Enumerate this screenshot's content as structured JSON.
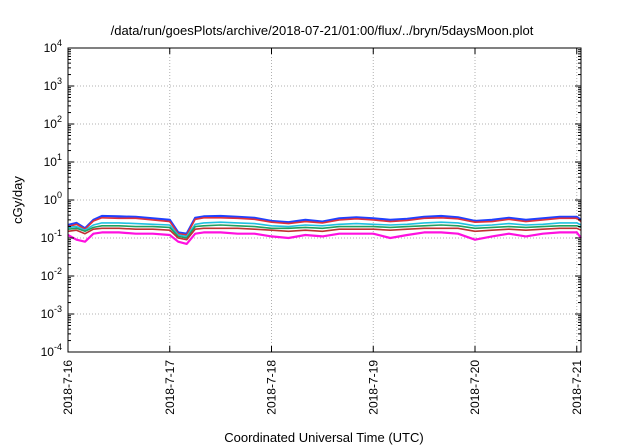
{
  "chart_data": {
    "type": "line",
    "title": "/data/run/goesPlots/archive/2018-07-21/01:00/flux/../bryn/5daysMoon.plot",
    "xlabel": "Coordinated Universal Time (UTC)",
    "ylabel": "cGy/day",
    "y_scale": "log",
    "ylim": [
      0.0001,
      10000
    ],
    "xlim": [
      "2018-07-16",
      "2018-07-21 01:00"
    ],
    "x_ticks": [
      "2018-7-16",
      "2018-7-17",
      "2018-7-18",
      "2018-7-19",
      "2018-7-20",
      "2018-7-21"
    ],
    "y_ticks": [
      {
        "base": "10",
        "exp": "-4"
      },
      {
        "base": "10",
        "exp": "-3"
      },
      {
        "base": "10",
        "exp": "-2"
      },
      {
        "base": "10",
        "exp": "-1"
      },
      {
        "base": "10",
        "exp": "0"
      },
      {
        "base": "10",
        "exp": "1"
      },
      {
        "base": "10",
        "exp": "2"
      },
      {
        "base": "10",
        "exp": "3"
      },
      {
        "base": "10",
        "exp": "4"
      }
    ],
    "grid": true,
    "x": [
      "2018-07-16 00:00",
      "2018-07-16 02:00",
      "2018-07-16 04:00",
      "2018-07-16 06:00",
      "2018-07-16 08:00",
      "2018-07-16 12:00",
      "2018-07-16 16:00",
      "2018-07-16 20:00",
      "2018-07-17 00:00",
      "2018-07-17 02:00",
      "2018-07-17 04:00",
      "2018-07-17 06:00",
      "2018-07-17 08:00",
      "2018-07-17 12:00",
      "2018-07-17 16:00",
      "2018-07-17 20:00",
      "2018-07-18 00:00",
      "2018-07-18 04:00",
      "2018-07-18 08:00",
      "2018-07-18 12:00",
      "2018-07-18 16:00",
      "2018-07-18 20:00",
      "2018-07-19 00:00",
      "2018-07-19 04:00",
      "2018-07-19 08:00",
      "2018-07-19 12:00",
      "2018-07-19 16:00",
      "2018-07-19 20:00",
      "2018-07-20 00:00",
      "2018-07-20 04:00",
      "2018-07-20 08:00",
      "2018-07-20 12:00",
      "2018-07-20 16:00",
      "2018-07-20 20:00",
      "2018-07-21 00:00",
      "2018-07-21 01:00"
    ],
    "series": [
      {
        "color": "#2040ff",
        "values": [
          0.22,
          0.25,
          0.18,
          0.3,
          0.38,
          0.37,
          0.36,
          0.33,
          0.3,
          0.14,
          0.13,
          0.34,
          0.37,
          0.38,
          0.36,
          0.34,
          0.28,
          0.26,
          0.3,
          0.27,
          0.33,
          0.35,
          0.33,
          0.3,
          0.32,
          0.36,
          0.38,
          0.35,
          0.28,
          0.3,
          0.34,
          0.3,
          0.33,
          0.36,
          0.36,
          0.3
        ]
      },
      {
        "color": "#e0303a",
        "values": [
          0.2,
          0.23,
          0.17,
          0.28,
          0.34,
          0.33,
          0.33,
          0.3,
          0.27,
          0.13,
          0.12,
          0.31,
          0.34,
          0.34,
          0.33,
          0.31,
          0.26,
          0.24,
          0.27,
          0.25,
          0.3,
          0.32,
          0.3,
          0.27,
          0.29,
          0.33,
          0.34,
          0.32,
          0.26,
          0.27,
          0.31,
          0.27,
          0.3,
          0.33,
          0.33,
          0.27
        ]
      },
      {
        "color": "#20c0e0",
        "values": [
          0.19,
          0.2,
          0.16,
          0.22,
          0.25,
          0.25,
          0.24,
          0.23,
          0.22,
          0.12,
          0.11,
          0.23,
          0.25,
          0.26,
          0.25,
          0.24,
          0.21,
          0.2,
          0.22,
          0.21,
          0.23,
          0.24,
          0.23,
          0.22,
          0.23,
          0.25,
          0.26,
          0.25,
          0.21,
          0.22,
          0.24,
          0.22,
          0.23,
          0.25,
          0.25,
          0.22
        ]
      },
      {
        "color": "#20a060",
        "values": [
          0.17,
          0.18,
          0.15,
          0.19,
          0.21,
          0.21,
          0.2,
          0.2,
          0.19,
          0.11,
          0.1,
          0.2,
          0.21,
          0.22,
          0.21,
          0.2,
          0.18,
          0.18,
          0.19,
          0.18,
          0.2,
          0.2,
          0.2,
          0.19,
          0.2,
          0.21,
          0.22,
          0.21,
          0.18,
          0.19,
          0.2,
          0.19,
          0.2,
          0.21,
          0.21,
          0.19
        ]
      },
      {
        "color": "#c03030",
        "values": [
          0.15,
          0.16,
          0.13,
          0.17,
          0.18,
          0.18,
          0.17,
          0.17,
          0.16,
          0.1,
          0.09,
          0.17,
          0.18,
          0.18,
          0.18,
          0.17,
          0.16,
          0.15,
          0.16,
          0.15,
          0.17,
          0.17,
          0.17,
          0.16,
          0.17,
          0.18,
          0.18,
          0.18,
          0.15,
          0.16,
          0.17,
          0.16,
          0.17,
          0.18,
          0.18,
          0.16
        ]
      },
      {
        "color": "#ff10e0",
        "values": [
          0.12,
          0.09,
          0.08,
          0.13,
          0.14,
          0.14,
          0.13,
          0.13,
          0.12,
          0.08,
          0.07,
          0.13,
          0.14,
          0.14,
          0.13,
          0.13,
          0.11,
          0.1,
          0.12,
          0.11,
          0.13,
          0.13,
          0.13,
          0.1,
          0.12,
          0.14,
          0.14,
          0.13,
          0.09,
          0.11,
          0.13,
          0.11,
          0.13,
          0.14,
          0.14,
          0.1
        ]
      }
    ]
  }
}
